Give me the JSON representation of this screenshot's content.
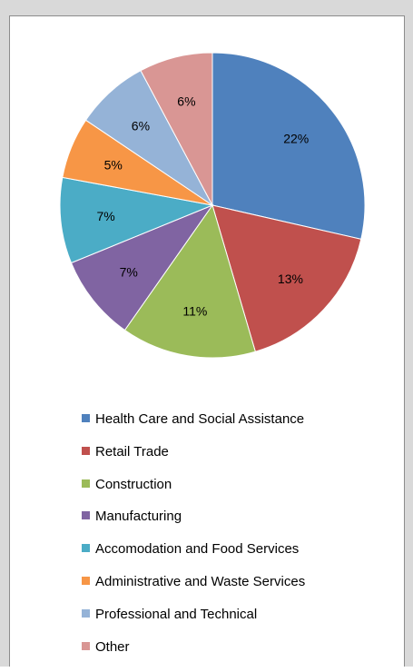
{
  "chart_data": {
    "type": "pie",
    "title": "",
    "categories": [
      "Health Care and Social Assistance",
      "Retail Trade",
      "Construction",
      "Manufacturing",
      "Accomodation and Food Services",
      "Administrative and Waste Services",
      "Professional and Technical",
      "Other"
    ],
    "values": [
      22,
      13,
      11,
      7,
      7,
      5,
      6,
      6
    ],
    "value_labels": [
      "22%",
      "13%",
      "11%",
      "7%",
      "7%",
      "5%",
      "6%",
      "6%"
    ],
    "colors": [
      "#4f81bd",
      "#c0504d",
      "#9bbb59",
      "#8064a2",
      "#4bacc6",
      "#f79646",
      "#95b3d7",
      "#d99694"
    ],
    "start_angle": "12 o'clock",
    "direction": "clockwise",
    "legend_position": "bottom"
  }
}
